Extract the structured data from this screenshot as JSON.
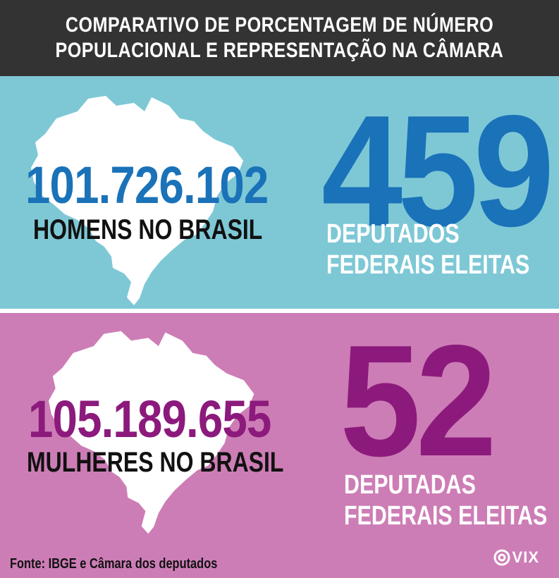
{
  "header": {
    "line1": "COMPARATIVO DE PORCENTAGEM DE NÚMERO",
    "line2": "POPULACIONAL E REPRESENTAÇÃO NA CÂMARA"
  },
  "men": {
    "population": "101.726.102",
    "population_label": "HOMENS NO BRASIL",
    "deputies": "459",
    "deputies_label_line1": "DEPUTADOS",
    "deputies_label_line2": "FEDERAIS ELEITAS"
  },
  "women": {
    "population": "105.189.655",
    "population_label": "MULHERES NO BRASIL",
    "deputies": "52",
    "deputies_label_line1": "DEPUTADAS",
    "deputies_label_line2": "FEDERAIS ELEITAS"
  },
  "footer": {
    "source": "Fonte: IBGE e Câmara dos deputados",
    "logo": "VIX"
  },
  "colors": {
    "header_bg": "#333333",
    "men_panel": "#7ec8d6",
    "men_accent": "#1a72b8",
    "women_panel": "#cd7db6",
    "women_accent": "#8c1a7c",
    "map_fill": "#ffffff"
  },
  "icons": {
    "map": "brazil-map-icon",
    "logo": "vix-logo-icon"
  }
}
